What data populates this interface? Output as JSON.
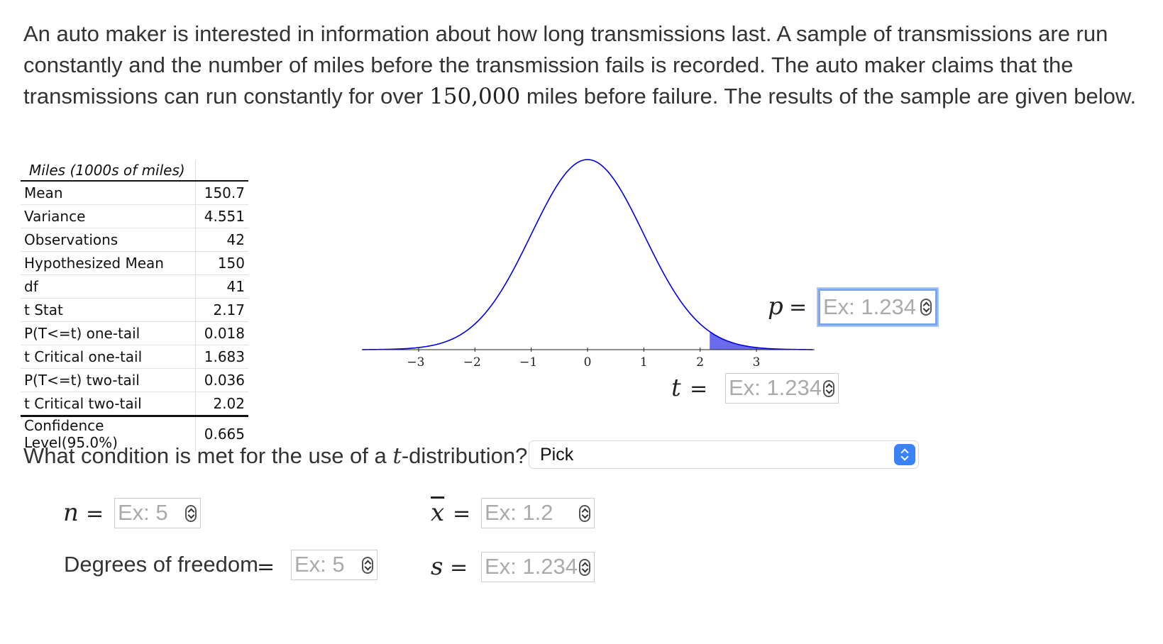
{
  "problem": {
    "text_before": "An auto maker is interested in information about how long transmissions last. A sample of transmissions are run constantly and the number of miles before the transmission fails is recorded. The auto maker claims that the transmissions can run constantly for over ",
    "claim_value": "150,000",
    "text_after": " miles before failure. The results of the sample are given below."
  },
  "table": {
    "header": "Miles (1000s of miles)",
    "rows": [
      {
        "label": "Mean",
        "value": "150.7"
      },
      {
        "label": "Variance",
        "value": "4.551"
      },
      {
        "label": "Observations",
        "value": "42"
      },
      {
        "label": "Hypothesized Mean",
        "value": "150"
      },
      {
        "label": "df",
        "value": "41"
      },
      {
        "label": "t Stat",
        "value": "2.17"
      },
      {
        "label": "P(T<=t) one-tail",
        "value": "0.018"
      },
      {
        "label": "t Critical one-tail",
        "value": "1.683"
      },
      {
        "label": "P(T<=t) two-tail",
        "value": "0.036"
      },
      {
        "label": "t Critical two-tail",
        "value": "2.02"
      },
      {
        "label": "Confidence Level(95.0%)",
        "value": "0.665"
      }
    ]
  },
  "chart_data": {
    "type": "area",
    "x_ticks": [
      "−3",
      "−2",
      "−1",
      "0",
      "1",
      "2",
      "3"
    ],
    "xlim": [
      -4,
      4
    ],
    "curve_color": "#0000dd",
    "shaded_from": 2.17,
    "shade_color": "#6b6bf0"
  },
  "fields": {
    "p_label": "p",
    "t_label": "t",
    "n_label": "n",
    "xbar_label": "x",
    "s_label": "s",
    "equals": "=",
    "p_placeholder": "Ex: 1.234",
    "t_placeholder": "Ex: 1.234",
    "n_placeholder": "Ex: 5",
    "xbar_placeholder": "Ex: 1.2",
    "dof_label": "Degrees of freedom",
    "dof_placeholder": "Ex: 5",
    "s_placeholder": "Ex: 1.234"
  },
  "question": {
    "text_before": "What condition is met for the use of a ",
    "t": "t",
    "text_after": "-distribution?",
    "select_value": "Pick"
  }
}
